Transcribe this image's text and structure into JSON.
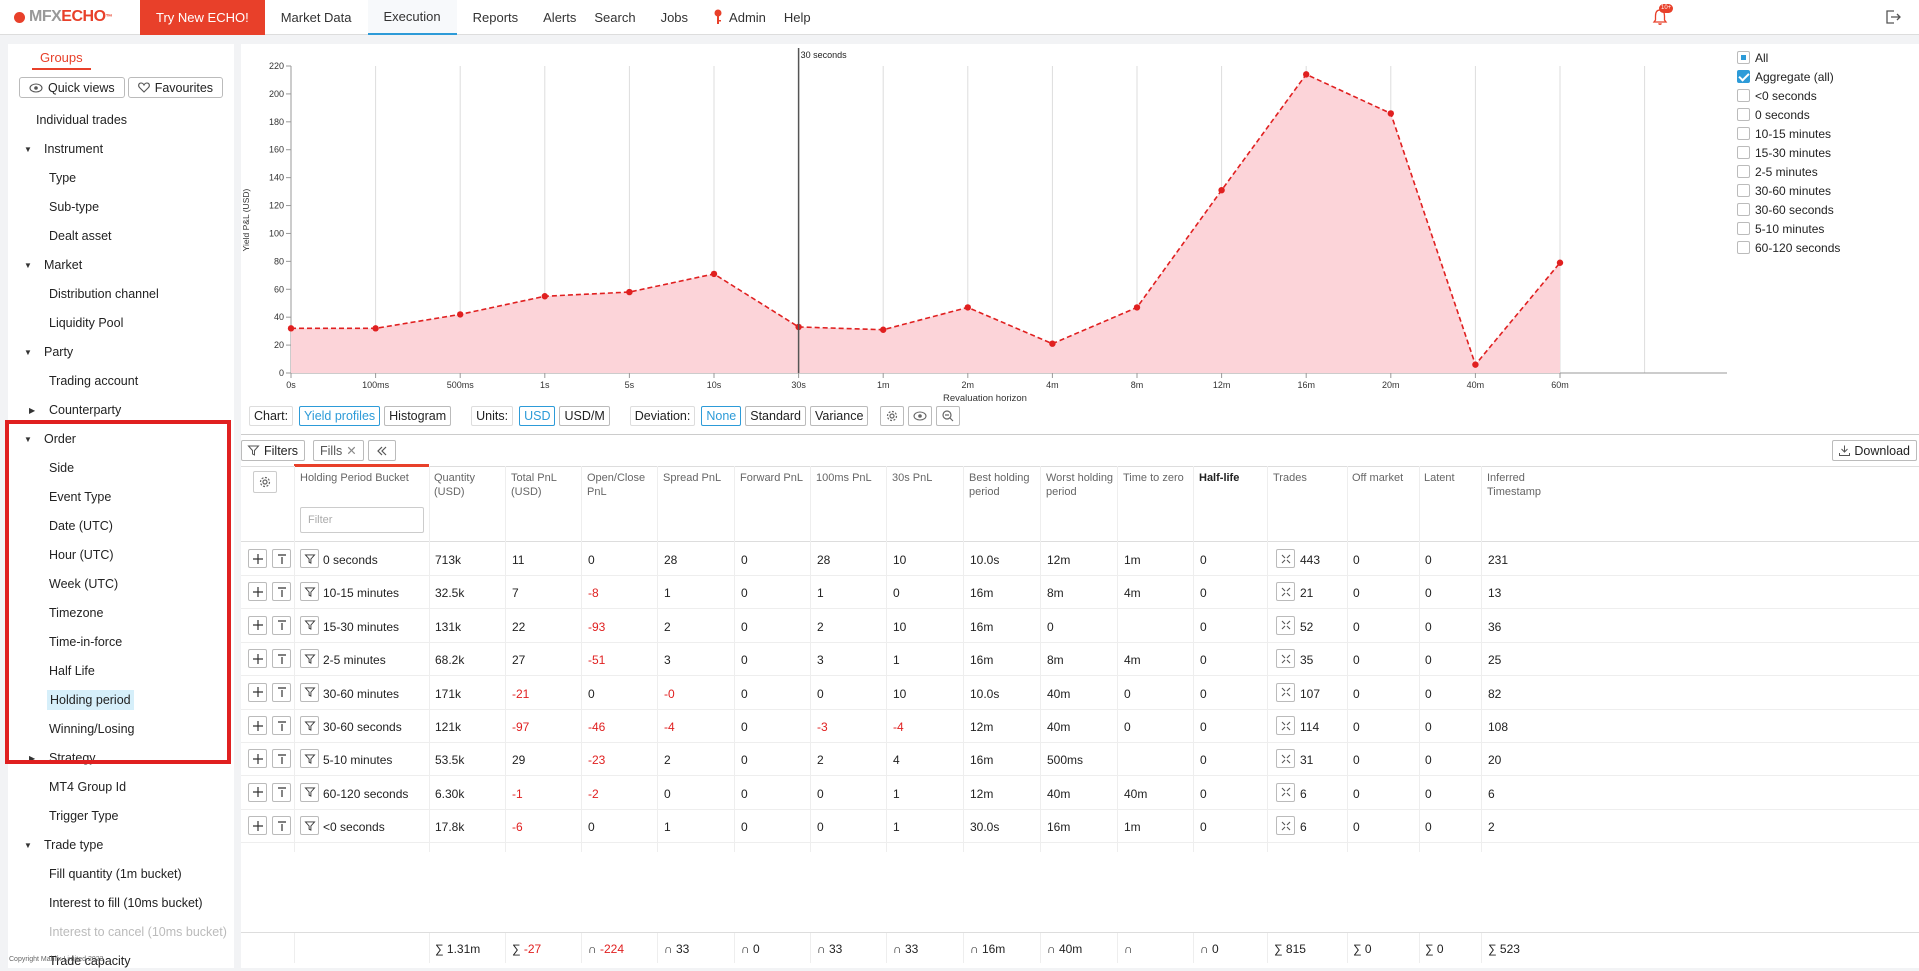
{
  "app": {
    "logo_mfx": "MFX",
    "logo_echo": "ECHO",
    "logo_tm": "™",
    "try_label": "Try New ECHO!",
    "nav": [
      "Market Data",
      "Execution",
      "Reports",
      "Alerts",
      "Search",
      "Jobs",
      "Admin",
      "Help"
    ],
    "active_nav": "Execution",
    "notification_badge": "10+",
    "accent": "#e8402a",
    "link_color": "#2d9bd8"
  },
  "sidebar": {
    "groups_tab": "Groups",
    "quick_views": "Quick views",
    "favourites": "Favourites",
    "items": [
      {
        "label": "Individual trades"
      },
      {
        "label": "Instrument"
      },
      {
        "label": "Type"
      },
      {
        "label": "Sub-type"
      },
      {
        "label": "Dealt asset"
      },
      {
        "label": "Market"
      },
      {
        "label": "Distribution channel"
      },
      {
        "label": "Liquidity Pool"
      },
      {
        "label": "Party"
      },
      {
        "label": "Trading account"
      },
      {
        "label": "Counterparty"
      },
      {
        "label": "Order"
      },
      {
        "label": "Side"
      },
      {
        "label": "Event Type"
      },
      {
        "label": "Date (UTC)"
      },
      {
        "label": "Hour (UTC)"
      },
      {
        "label": "Week (UTC)"
      },
      {
        "label": "Timezone"
      },
      {
        "label": "Time-in-force"
      },
      {
        "label": "Half Life"
      },
      {
        "label": "Holding period"
      },
      {
        "label": "Winning/Losing"
      },
      {
        "label": "Strategy"
      },
      {
        "label": "MT4 Group Id"
      },
      {
        "label": "Trigger Type"
      },
      {
        "label": "Trade type"
      },
      {
        "label": "Fill quantity (1m bucket)"
      },
      {
        "label": "Interest to fill (10ms bucket)"
      },
      {
        "label": "Interest to cancel (10ms bucket)"
      },
      {
        "label": "Trade capacity"
      }
    ],
    "copyright": "Copyright Mahifx Limited 2023"
  },
  "chart_data": {
    "type": "area",
    "ylabel": "Yield P&L (USD)",
    "xlabel": "Revaluation horizon",
    "categories": [
      "0s",
      "100ms",
      "500ms",
      "1s",
      "5s",
      "10s",
      "30s",
      "1m",
      "2m",
      "4m",
      "8m",
      "12m",
      "16m",
      "20m",
      "40m",
      "60m"
    ],
    "ylim": [
      0,
      220
    ],
    "yticks": [
      "0",
      "20",
      "40",
      "60",
      "80",
      "100",
      "120",
      "140",
      "160",
      "180",
      "200",
      "220"
    ],
    "marker_label": "30 seconds",
    "marker_at": "30s",
    "series": [
      {
        "name": "Aggregate (all)",
        "color": "#e02020",
        "fill": "#fcd4d9",
        "values": [
          32,
          32,
          42,
          55,
          58,
          71,
          33,
          31,
          47,
          21,
          47,
          131,
          214,
          186,
          6,
          79
        ]
      }
    ],
    "grid": true
  },
  "legend": [
    {
      "label": "All",
      "state": "partial"
    },
    {
      "label": "Aggregate (all)",
      "state": "checked"
    },
    {
      "label": "<0 seconds",
      "state": "unchecked"
    },
    {
      "label": "0 seconds",
      "state": "unchecked"
    },
    {
      "label": "10-15 minutes",
      "state": "unchecked"
    },
    {
      "label": "15-30 minutes",
      "state": "unchecked"
    },
    {
      "label": "2-5 minutes",
      "state": "unchecked"
    },
    {
      "label": "30-60 minutes",
      "state": "unchecked"
    },
    {
      "label": "30-60 seconds",
      "state": "unchecked"
    },
    {
      "label": "5-10 minutes",
      "state": "unchecked"
    },
    {
      "label": "60-120 seconds",
      "state": "unchecked"
    }
  ],
  "controls": {
    "chart_label": "Chart:",
    "yield_profiles": "Yield profiles",
    "histogram": "Histogram",
    "units_label": "Units:",
    "usd": "USD",
    "usd_m": "USD/M",
    "deviation_label": "Deviation:",
    "none": "None",
    "standard": "Standard",
    "variance": "Variance"
  },
  "toolbar": {
    "filters": "Filters",
    "fills": "Fills",
    "download": "Download"
  },
  "table": {
    "filter_placeholder": "Filter",
    "headers": [
      "Holding Period Bucket",
      "Quantity (USD)",
      "Total PnL (USD)",
      "Open/Close PnL",
      "Spread PnL",
      "Forward PnL",
      "100ms PnL",
      "30s PnL",
      "Best holding period",
      "Worst holding period",
      "Time to zero",
      "Half-life",
      "Trades",
      "Off market",
      "Latent",
      "Inferred Timestamp"
    ],
    "rows": [
      [
        "0 seconds",
        "713k",
        "11",
        "0",
        "28",
        "0",
        "28",
        "10",
        "10.0s",
        "12m",
        "1m",
        "0",
        "443",
        "0",
        "0",
        "231"
      ],
      [
        "10-15 minutes",
        "32.5k",
        "7",
        "-8",
        "1",
        "0",
        "1",
        "0",
        "16m",
        "8m",
        "4m",
        "0",
        "21",
        "0",
        "0",
        "13"
      ],
      [
        "15-30 minutes",
        "131k",
        "22",
        "-93",
        "2",
        "0",
        "2",
        "10",
        "16m",
        "0",
        "",
        "0",
        "52",
        "0",
        "0",
        "36"
      ],
      [
        "2-5 minutes",
        "68.2k",
        "27",
        "-51",
        "3",
        "0",
        "3",
        "1",
        "16m",
        "8m",
        "4m",
        "0",
        "35",
        "0",
        "0",
        "25"
      ],
      [
        "30-60 minutes",
        "171k",
        "-21",
        "0",
        "-0",
        "0",
        "0",
        "10",
        "10.0s",
        "40m",
        "0",
        "0",
        "107",
        "0",
        "0",
        "82"
      ],
      [
        "30-60 seconds",
        "121k",
        "-97",
        "-46",
        "-4",
        "0",
        "-3",
        "-4",
        "12m",
        "40m",
        "0",
        "0",
        "114",
        "0",
        "0",
        "108"
      ],
      [
        "5-10 minutes",
        "53.5k",
        "29",
        "-23",
        "2",
        "0",
        "2",
        "4",
        "16m",
        "500ms",
        "",
        "0",
        "31",
        "0",
        "0",
        "20"
      ],
      [
        "60-120 seconds",
        "6.30k",
        "-1",
        "-2",
        "0",
        "0",
        "0",
        "1",
        "12m",
        "40m",
        "40m",
        "0",
        "6",
        "0",
        "0",
        "6"
      ],
      [
        "<0 seconds",
        "17.8k",
        "-6",
        "0",
        "1",
        "0",
        "0",
        "1",
        "30.0s",
        "16m",
        "1m",
        "0",
        "6",
        "0",
        "0",
        "2"
      ]
    ],
    "footer": [
      "∑ 1.31m",
      "∑ -27",
      "∩ -224",
      "∩ 33",
      "∩ 0",
      "∩ 33",
      "∩ 33",
      "∩ 16m",
      "∩ 40m",
      "∩",
      "∩ 0",
      "∑ 815",
      "∑ 0",
      "∑ 0",
      "∑ 523"
    ]
  }
}
